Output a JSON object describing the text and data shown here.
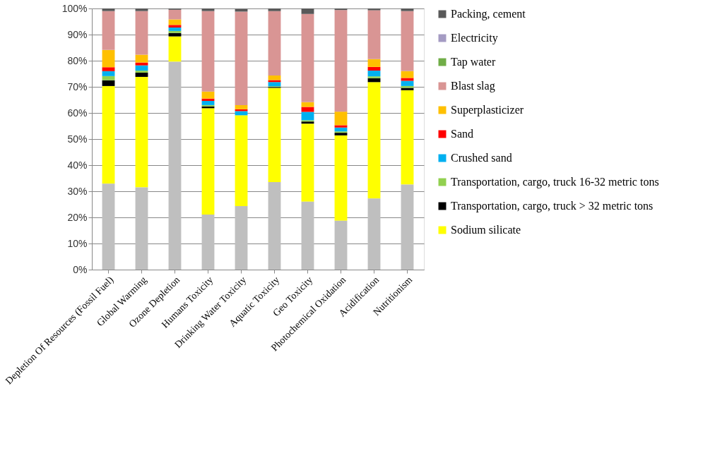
{
  "chart_data": {
    "type": "bar",
    "stacked": true,
    "grid": "y",
    "legend": "right",
    "categories": [
      "Depletion Of Resources (Fossil Fuel)",
      "Global Warming",
      "Ozone Depletion",
      "Humans Toxicity",
      "Drinking Water Toxicity",
      "Aquatic Toxicity",
      "Geo Toxicity",
      "Photochemical Oxidation",
      "Acidification",
      "Nutritionism"
    ],
    "ylim": [
      0,
      100
    ],
    "yticks": [
      {
        "value": 0,
        "label": "0%"
      },
      {
        "value": 10,
        "label": "10%"
      },
      {
        "value": 20,
        "label": "20%"
      },
      {
        "value": 30,
        "label": "30%"
      },
      {
        "value": 40,
        "label": "40%"
      },
      {
        "value": 50,
        "label": "50%"
      },
      {
        "value": 60,
        "label": "60%"
      },
      {
        "value": 70,
        "label": "70%"
      },
      {
        "value": 80,
        "label": "80%"
      },
      {
        "value": 90,
        "label": "90%"
      },
      {
        "value": 100,
        "label": "100%"
      }
    ],
    "series": [
      {
        "color": "#bfbfbf",
        "values": [
          32.9,
          31.5,
          79.6,
          21.1,
          24.3,
          33.5,
          26.0,
          18.7,
          27.2,
          32.6
        ]
      },
      {
        "name": "Sodium silicate",
        "color": "#ffff00",
        "values": [
          37.4,
          42.3,
          9.7,
          40.7,
          34.8,
          36.1,
          29.9,
          32.7,
          44.6,
          36.1
        ]
      },
      {
        "name": "Transportation, cargo, truck > 32 metric tons",
        "color": "#000000",
        "values": [
          2.2,
          1.6,
          1.3,
          0.7,
          null,
          0.3,
          0.8,
          1.0,
          1.5,
          0.9
        ]
      },
      {
        "name": "Transportation, cargo, truck 16-32 metric tons",
        "color": "#92d050",
        "values": [
          1.6,
          0.8,
          0.8,
          0.5,
          0,
          0.3,
          0.5,
          0.5,
          0.7,
          0.7
        ]
      },
      {
        "name": "Crushed sand",
        "color": "#00b0f0",
        "values": [
          1.9,
          2.0,
          1.3,
          1.6,
          1.6,
          1.6,
          3.2,
          1.5,
          2.2,
          2.0
        ]
      },
      {
        "name": "Sand",
        "color": "#ff0000",
        "values": [
          1.5,
          1.1,
          1.0,
          0.9,
          0.7,
          0.8,
          1.9,
          0.9,
          1.4,
          1.1
        ]
      },
      {
        "name": "Superplasticizer",
        "color": "#ffc000",
        "values": [
          6.6,
          3.0,
          2.1,
          2.7,
          1.6,
          1.7,
          1.8,
          5.2,
          3.0,
          2.6
        ]
      },
      {
        "name": "Blast slag",
        "color": "#d99594",
        "values": [
          14.9,
          16.7,
          3.7,
          30.8,
          35.8,
          24.7,
          33.8,
          38.9,
          18.7,
          23.0
        ]
      },
      {
        "name": "Tap water",
        "color": "#70ad47",
        "values": [
          0,
          0,
          0,
          0,
          0,
          0,
          0,
          0,
          0,
          0
        ]
      },
      {
        "name": "Electricity",
        "color": "#a49bc3",
        "values": [
          0,
          0,
          0,
          0,
          0,
          0,
          0,
          0,
          0,
          0
        ]
      },
      {
        "name": "Packing, cement",
        "color": "#595959",
        "values": [
          1.0,
          1.0,
          0.5,
          1.0,
          1.0,
          1.0,
          2.1,
          0.6,
          0.7,
          1.0
        ]
      }
    ]
  }
}
